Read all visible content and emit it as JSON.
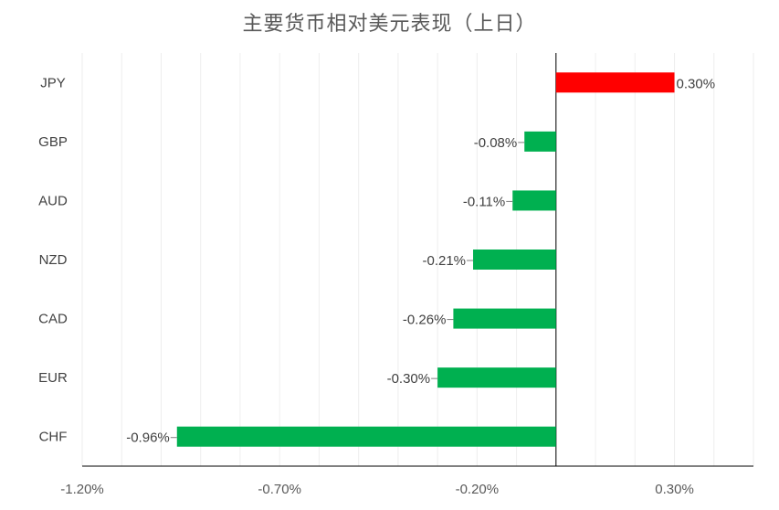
{
  "chart_data": {
    "type": "bar",
    "orientation": "horizontal",
    "title": "主要货币相对美元表现（上日）",
    "categories": [
      "JPY",
      "GBP",
      "AUD",
      "NZD",
      "CAD",
      "EUR",
      "CHF"
    ],
    "values": [
      0.3,
      -0.08,
      -0.11,
      -0.21,
      -0.26,
      -0.3,
      -0.96
    ],
    "data_labels": [
      "0.30%",
      "-0.08%",
      "-0.11%",
      "-0.21%",
      "-0.26%",
      "-0.30%",
      "-0.96%"
    ],
    "xlim": [
      -1.2,
      0.5
    ],
    "x_ticks": [
      -1.2,
      -0.7,
      -0.2,
      0.3
    ],
    "x_tick_labels": [
      "-1.20%",
      "-0.70%",
      "-0.20%",
      "0.30%"
    ],
    "xlabel": "",
    "ylabel": "",
    "grid": true,
    "legend": "none",
    "colors": {
      "positive": "#ff0000",
      "negative": "#00b050",
      "grid": "#eeeeee",
      "axis": "#000000"
    }
  }
}
